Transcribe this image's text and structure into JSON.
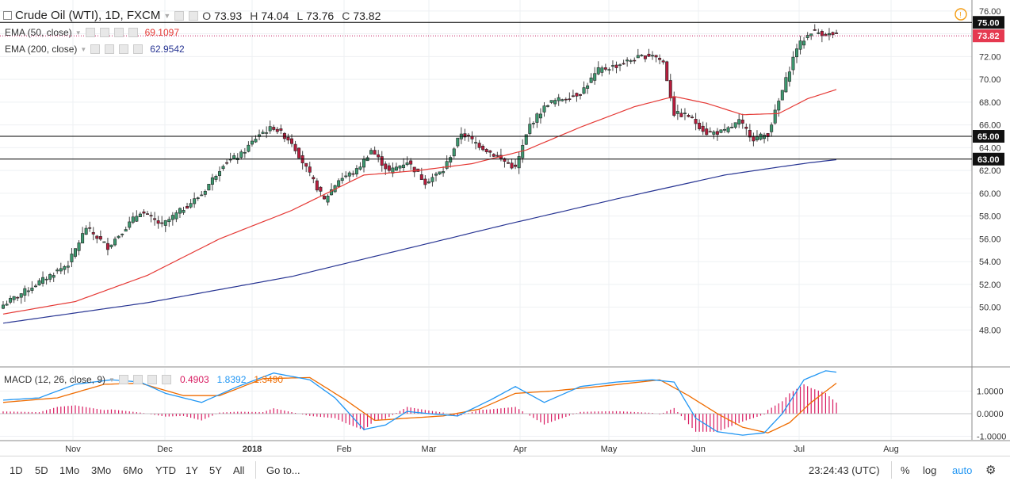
{
  "header": {
    "symbol": "Crude Oil (WTI), 1D, FXCM",
    "o_label": "O",
    "o_value": "73.93",
    "h_label": "H",
    "h_value": "74.04",
    "l_label": "L",
    "l_value": "73.76",
    "c_label": "C",
    "c_value": "73.82"
  },
  "indicators": {
    "ema50_label": "EMA (50, close)",
    "ema50_value": "69.1097",
    "ema50_color": "#e53935",
    "ema200_label": "EMA (200, close)",
    "ema200_value": "62.9542",
    "ema200_color": "#283593",
    "macd_label": "MACD (12, 26, close, 9)",
    "macd_hist": "0.4903",
    "macd_line": "1.8392",
    "macd_signal": "1.3490",
    "macd_hist_color": "#d81b60",
    "macd_line_color": "#2196f3",
    "macd_signal_color": "#ef6c00"
  },
  "price_labels": {
    "level_75": "75.00",
    "level_65": "65.00",
    "level_63": "63.00",
    "last": "73.82"
  },
  "toolbar": {
    "ranges": [
      "1D",
      "5D",
      "1Mo",
      "3Mo",
      "6Mo",
      "YTD",
      "1Y",
      "5Y",
      "All"
    ],
    "goto": "Go to...",
    "time": "23:24:43 (UTC)",
    "percent": "%",
    "log": "log",
    "auto": "auto"
  },
  "colors": {
    "up": "#26a69a",
    "down": "#c2185b",
    "up_body": "#3d9970",
    "down_body": "#b71c3c",
    "grid": "#eeeeee"
  },
  "chart_data": [
    {
      "type": "candlestick",
      "title": "Crude Oil (WTI), 1D, FXCM",
      "x_ticks": [
        "Nov",
        "Dec",
        "2018",
        "Feb",
        "Mar",
        "Apr",
        "May",
        "Jun",
        "Jul",
        "Aug"
      ],
      "y_ticks": [
        "48.00",
        "50.00",
        "52.00",
        "54.00",
        "56.00",
        "58.00",
        "60.00",
        "62.00",
        "64.00",
        "66.00",
        "68.00",
        "70.00",
        "72.00",
        "74.00",
        "76.00"
      ],
      "ylim": [
        47,
        76.5
      ],
      "horizontal_levels": [
        75.0,
        65.0,
        63.0
      ],
      "last_price": 73.82,
      "anchors_close": [
        [
          0,
          50.2
        ],
        [
          8,
          51.8
        ],
        [
          18,
          53.8
        ],
        [
          23,
          57.0
        ],
        [
          29,
          55.3
        ],
        [
          38,
          58.4
        ],
        [
          44,
          57.2
        ],
        [
          55,
          59.9
        ],
        [
          61,
          62.6
        ],
        [
          66,
          63.4
        ],
        [
          71,
          65.2
        ],
        [
          75,
          65.8
        ],
        [
          80,
          64.5
        ],
        [
          85,
          61.6
        ],
        [
          89,
          59.4
        ],
        [
          93,
          61.2
        ],
        [
          98,
          62.0
        ],
        [
          102,
          63.8
        ],
        [
          107,
          61.9
        ],
        [
          112,
          62.8
        ],
        [
          117,
          61.0
        ],
        [
          122,
          62.0
        ],
        [
          127,
          65.3
        ],
        [
          132,
          64.2
        ],
        [
          138,
          63.0
        ],
        [
          142,
          62.2
        ],
        [
          146,
          66.0
        ],
        [
          151,
          67.9
        ],
        [
          155,
          68.3
        ],
        [
          160,
          68.8
        ],
        [
          165,
          70.8
        ],
        [
          170,
          71.2
        ],
        [
          175,
          71.8
        ],
        [
          180,
          72.2
        ],
        [
          183,
          71.5
        ],
        [
          186,
          67.0
        ],
        [
          190,
          66.8
        ],
        [
          195,
          65.3
        ],
        [
          200,
          65.4
        ],
        [
          204,
          66.3
        ],
        [
          208,
          64.8
        ],
        [
          212,
          65.2
        ],
        [
          216,
          69.0
        ],
        [
          220,
          72.8
        ],
        [
          224,
          74.2
        ],
        [
          228,
          74.0
        ],
        [
          231,
          73.82
        ]
      ],
      "ema50": [
        [
          0,
          49.4
        ],
        [
          20,
          50.5
        ],
        [
          40,
          52.8
        ],
        [
          60,
          56.0
        ],
        [
          80,
          58.5
        ],
        [
          100,
          61.6
        ],
        [
          115,
          62.0
        ],
        [
          130,
          62.6
        ],
        [
          145,
          63.8
        ],
        [
          160,
          65.8
        ],
        [
          175,
          67.6
        ],
        [
          186,
          68.5
        ],
        [
          195,
          67.9
        ],
        [
          205,
          66.9
        ],
        [
          215,
          67.0
        ],
        [
          223,
          68.3
        ],
        [
          231,
          69.11
        ]
      ],
      "ema200": [
        [
          0,
          48.6
        ],
        [
          40,
          50.4
        ],
        [
          80,
          52.7
        ],
        [
          110,
          55.0
        ],
        [
          140,
          57.3
        ],
        [
          170,
          59.5
        ],
        [
          200,
          61.6
        ],
        [
          215,
          62.3
        ],
        [
          224,
          62.7
        ],
        [
          231,
          62.95
        ]
      ],
      "macd": {
        "ylim": [
          -1.0,
          2.0
        ],
        "y_ticks": [
          "1.0000",
          "0.0000",
          "-1.0000"
        ],
        "line_anchors": [
          [
            0,
            0.6
          ],
          [
            10,
            0.7
          ],
          [
            20,
            1.3
          ],
          [
            30,
            1.5
          ],
          [
            38,
            1.4
          ],
          [
            45,
            0.9
          ],
          [
            55,
            0.5
          ],
          [
            65,
            1.2
          ],
          [
            75,
            1.8
          ],
          [
            85,
            1.5
          ],
          [
            92,
            0.7
          ],
          [
            100,
            -0.7
          ],
          [
            106,
            -0.5
          ],
          [
            112,
            0.1
          ],
          [
            118,
            0.0
          ],
          [
            126,
            -0.1
          ],
          [
            135,
            0.6
          ],
          [
            142,
            1.2
          ],
          [
            150,
            0.5
          ],
          [
            160,
            1.2
          ],
          [
            170,
            1.4
          ],
          [
            180,
            1.5
          ],
          [
            186,
            1.4
          ],
          [
            192,
            -0.2
          ],
          [
            198,
            -0.8
          ],
          [
            205,
            -0.95
          ],
          [
            211,
            -0.85
          ],
          [
            216,
            0.0
          ],
          [
            222,
            1.5
          ],
          [
            228,
            1.9
          ],
          [
            231,
            1.84
          ]
        ],
        "signal_anchors": [
          [
            0,
            0.5
          ],
          [
            15,
            0.7
          ],
          [
            28,
            1.3
          ],
          [
            38,
            1.35
          ],
          [
            50,
            0.8
          ],
          [
            60,
            0.8
          ],
          [
            72,
            1.55
          ],
          [
            85,
            1.6
          ],
          [
            95,
            0.6
          ],
          [
            103,
            -0.3
          ],
          [
            112,
            -0.2
          ],
          [
            122,
            -0.1
          ],
          [
            132,
            0.2
          ],
          [
            142,
            0.9
          ],
          [
            152,
            1.0
          ],
          [
            165,
            1.2
          ],
          [
            182,
            1.5
          ],
          [
            190,
            0.8
          ],
          [
            198,
            0.0
          ],
          [
            205,
            -0.6
          ],
          [
            212,
            -0.85
          ],
          [
            218,
            -0.4
          ],
          [
            224,
            0.5
          ],
          [
            231,
            1.35
          ]
        ]
      }
    }
  ]
}
